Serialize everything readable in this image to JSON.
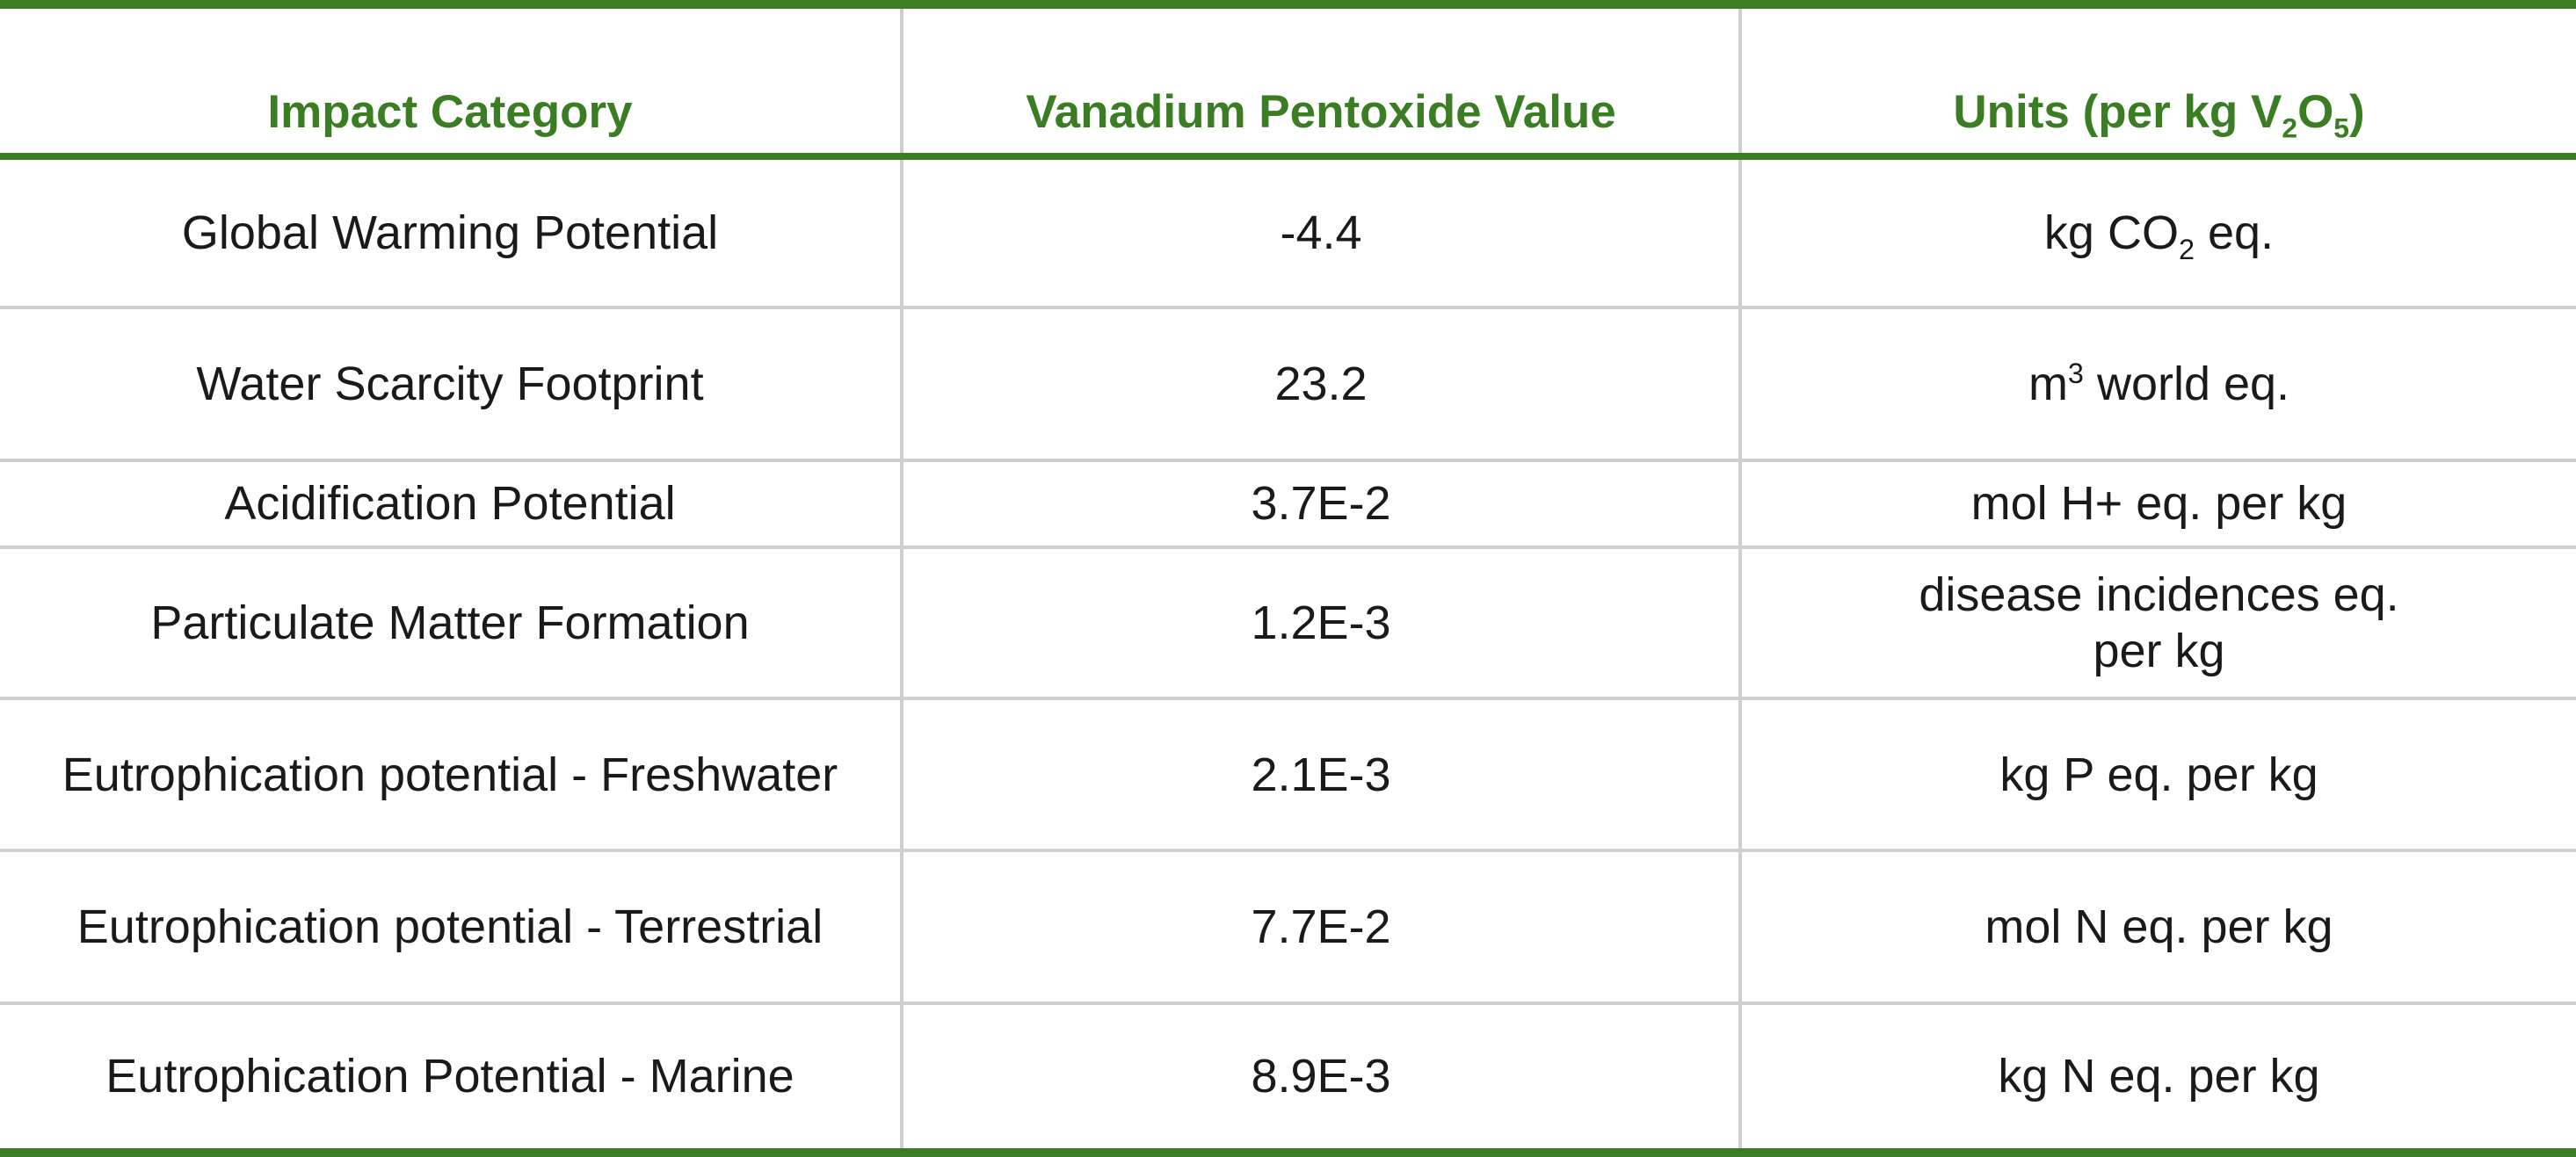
{
  "table": {
    "headers": {
      "impact_category": "Impact Category",
      "value": "Vanadium Pentoxide Value",
      "units_prefix": "Units (per kg V",
      "units_sub1": "2",
      "units_mid": "O",
      "units_sub2": "5",
      "units_suffix": ")"
    },
    "rows": [
      {
        "category": "Global Warming Potential",
        "value": "-4.4",
        "unit_prefix": "kg CO",
        "unit_sub": "2",
        "unit_suffix": " eq."
      },
      {
        "category": "Water Scarcity Footprint",
        "value": "23.2",
        "unit_prefix": "m",
        "unit_sup": "3",
        "unit_suffix": " world eq."
      },
      {
        "category": "Acidification Potential",
        "value": "3.7E-2",
        "unit": "mol H+ eq. per kg"
      },
      {
        "category": "Particulate Matter Formation",
        "value": "1.2E-3",
        "unit_line1": "disease incidences eq.",
        "unit_line2": "per kg"
      },
      {
        "category": "Eutrophication potential - Freshwater",
        "value": "2.1E-3",
        "unit": "kg P eq. per kg"
      },
      {
        "category": "Eutrophication potential - Terrestrial",
        "value": "7.7E-2",
        "unit": "mol N eq. per kg"
      },
      {
        "category": "Eutrophication Potential - Marine",
        "value": "8.9E-3",
        "unit": "kg N eq. per kg"
      }
    ]
  },
  "colors": {
    "accent_green": "#3a7d23",
    "grid_gray": "#cfcfcf",
    "text": "#1a1a1a"
  }
}
